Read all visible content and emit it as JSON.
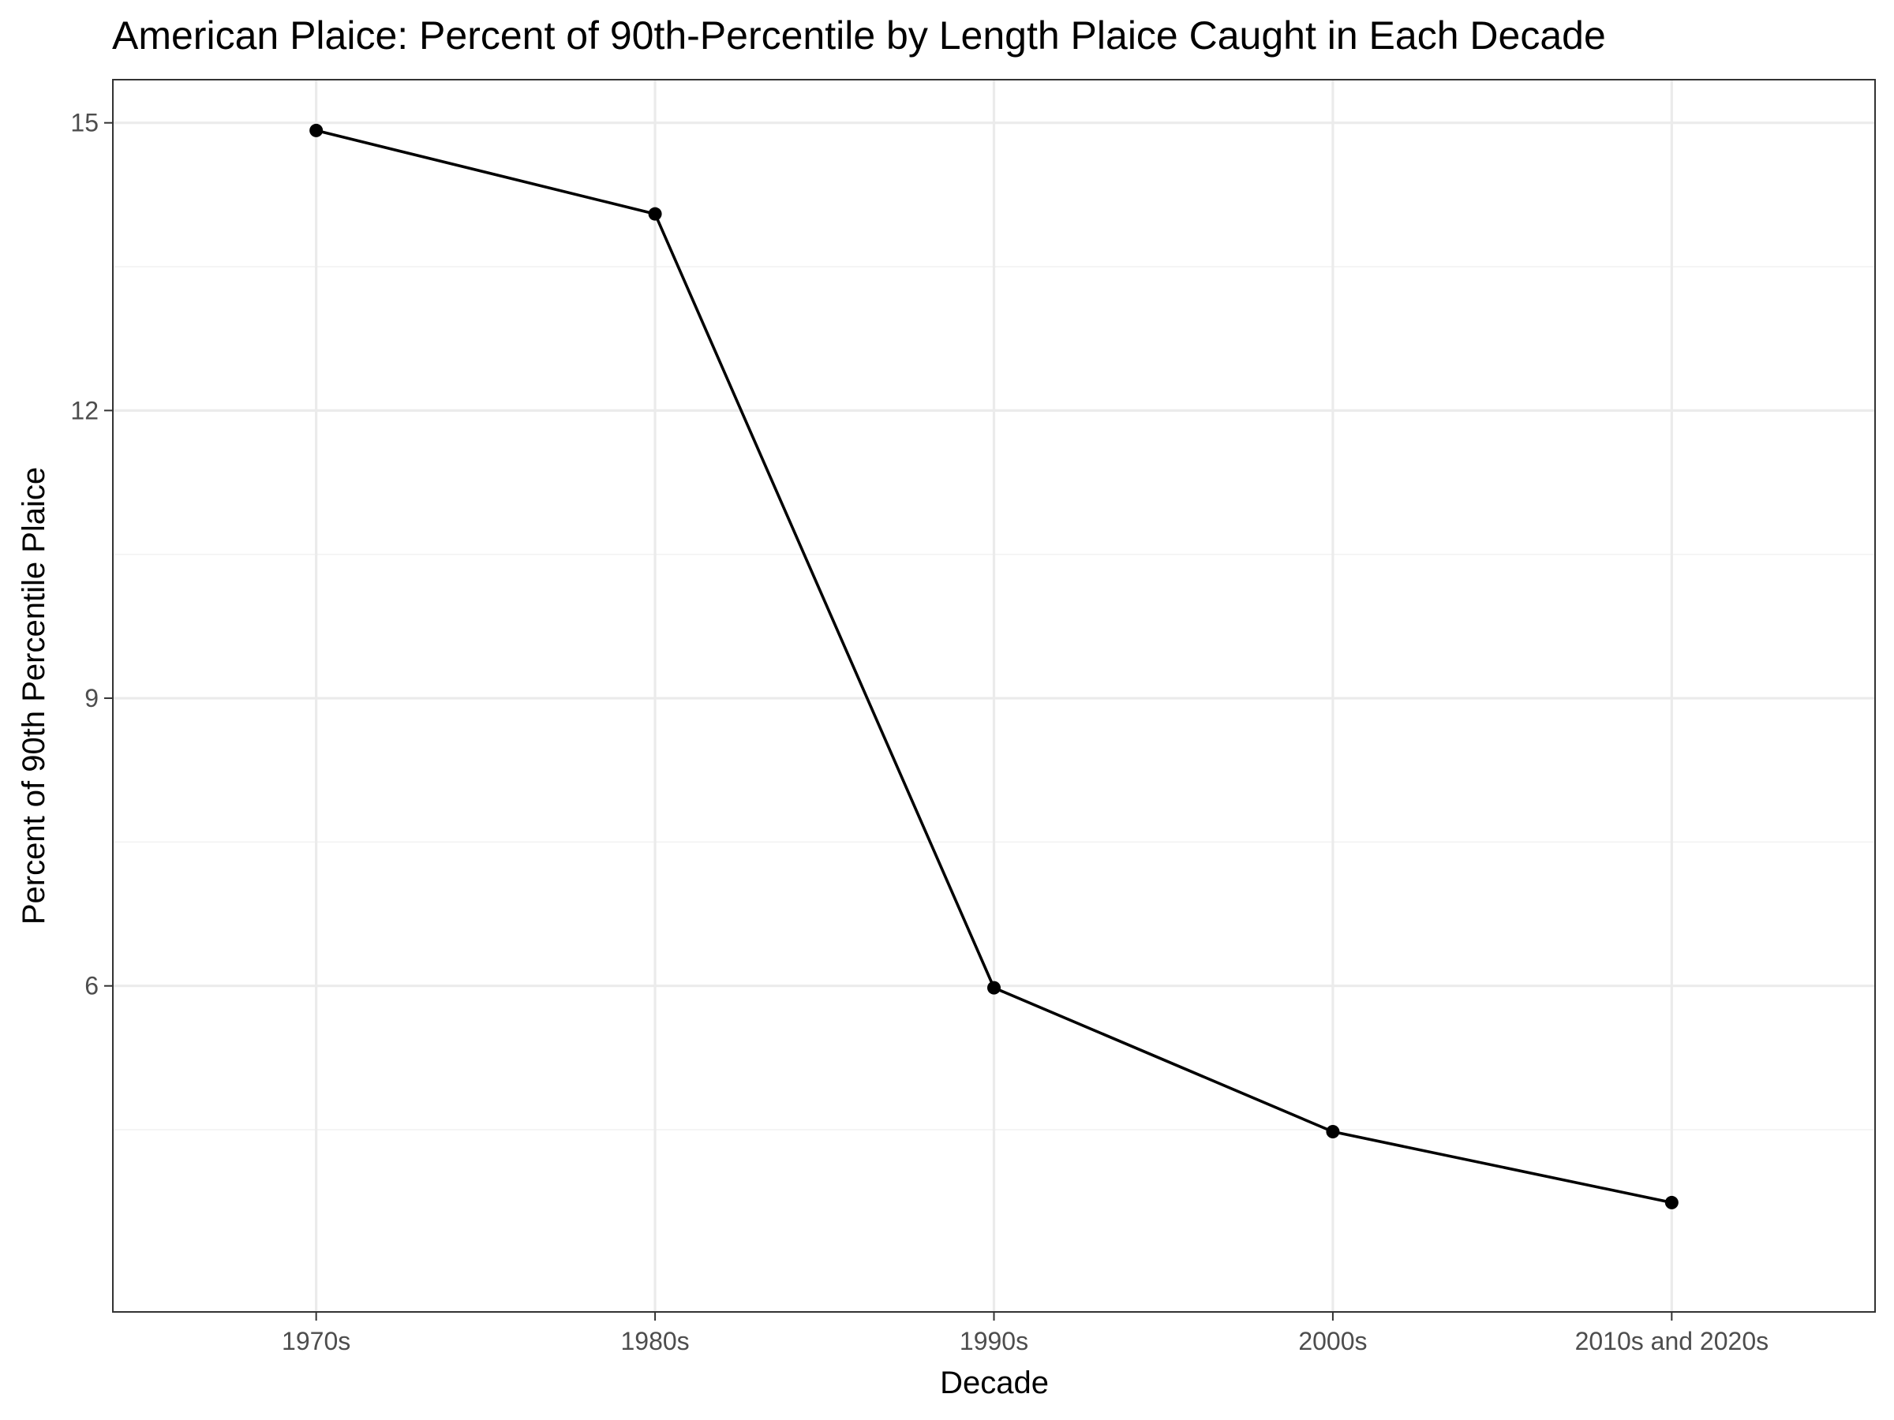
{
  "chart_data": {
    "type": "line",
    "title": "American Plaice: Percent of 90th-Percentile by Length Plaice Caught in Each Decade",
    "xlabel": "Decade",
    "ylabel": "Percent of 90th Percentile Plaice",
    "categories": [
      "1970s",
      "1980s",
      "1990s",
      "2000s",
      "2010s and 2020s"
    ],
    "values": [
      14.92,
      14.05,
      5.98,
      4.48,
      3.74
    ],
    "ylim": [
      2.6,
      15.45
    ],
    "yticks": [
      6,
      9,
      12,
      15
    ],
    "yticks_labels": [
      "6",
      "9",
      "12",
      "15"
    ],
    "grid": true,
    "line_color": "#000000",
    "point_color": "#000000"
  }
}
